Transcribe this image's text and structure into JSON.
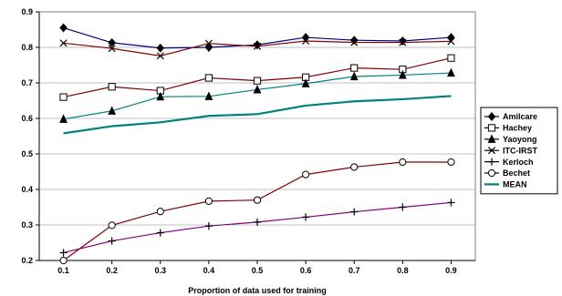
{
  "chart_data": {
    "type": "line",
    "title": "",
    "xlabel": "Proportion of data used for training",
    "ylabel": "",
    "x": [
      0.1,
      0.2,
      0.3,
      0.4,
      0.5,
      0.6,
      0.7,
      0.8,
      0.9
    ],
    "x_tick_labels": [
      "0.1",
      "0.2",
      "0.3",
      "0.4",
      "0.5",
      "0.6",
      "0.7",
      "0.8",
      "0.9"
    ],
    "xlim": [
      0.05,
      0.95
    ],
    "ylim": [
      0.2,
      0.9
    ],
    "y_ticks": [
      0.2,
      0.3,
      0.4,
      0.5,
      0.6,
      0.7,
      0.8,
      0.9
    ],
    "y_tick_labels": [
      "0.2",
      "0.3",
      "0.4",
      "0.5",
      "0.6",
      "0.7",
      "0.8",
      "0.9"
    ],
    "grid": true,
    "legend_position": "right",
    "series": [
      {
        "name": "Amilcare",
        "color": "#000000",
        "line_color": "#000080",
        "marker": "diamond-filled",
        "values": [
          0.855,
          0.813,
          0.798,
          0.8,
          0.807,
          0.828,
          0.82,
          0.818,
          0.828
        ]
      },
      {
        "name": "Hachey",
        "color": "#000000",
        "line_color": "#800000",
        "marker": "square-open",
        "values": [
          0.66,
          0.689,
          0.678,
          0.714,
          0.706,
          0.716,
          0.742,
          0.738,
          0.77
        ]
      },
      {
        "name": "Yaoyong",
        "color": "#000000",
        "line_color": "#008080",
        "marker": "triangle-filled",
        "values": [
          0.598,
          0.621,
          0.661,
          0.662,
          0.681,
          0.698,
          0.718,
          0.722,
          0.728
        ]
      },
      {
        "name": "ITC-IRST",
        "color": "#000000",
        "line_color": "#800000",
        "marker": "x",
        "values": [
          0.812,
          0.797,
          0.776,
          0.811,
          0.803,
          0.818,
          0.814,
          0.814,
          0.817
        ]
      },
      {
        "name": "Kerloch",
        "color": "#000000",
        "line_color": "#800080",
        "marker": "plus",
        "values": [
          0.222,
          0.255,
          0.278,
          0.297,
          0.308,
          0.322,
          0.337,
          0.35,
          0.363
        ]
      },
      {
        "name": "Bechet",
        "color": "#000000",
        "line_color": "#800000",
        "marker": "circle-open",
        "values": [
          0.2,
          0.299,
          0.338,
          0.367,
          0.37,
          0.442,
          0.463,
          0.477,
          0.477
        ]
      },
      {
        "name": "MEAN",
        "color": "#008080",
        "line_color": "#008080",
        "marker": "none",
        "values": [
          0.558,
          0.578,
          0.589,
          0.607,
          0.612,
          0.636,
          0.648,
          0.654,
          0.663
        ]
      }
    ]
  }
}
